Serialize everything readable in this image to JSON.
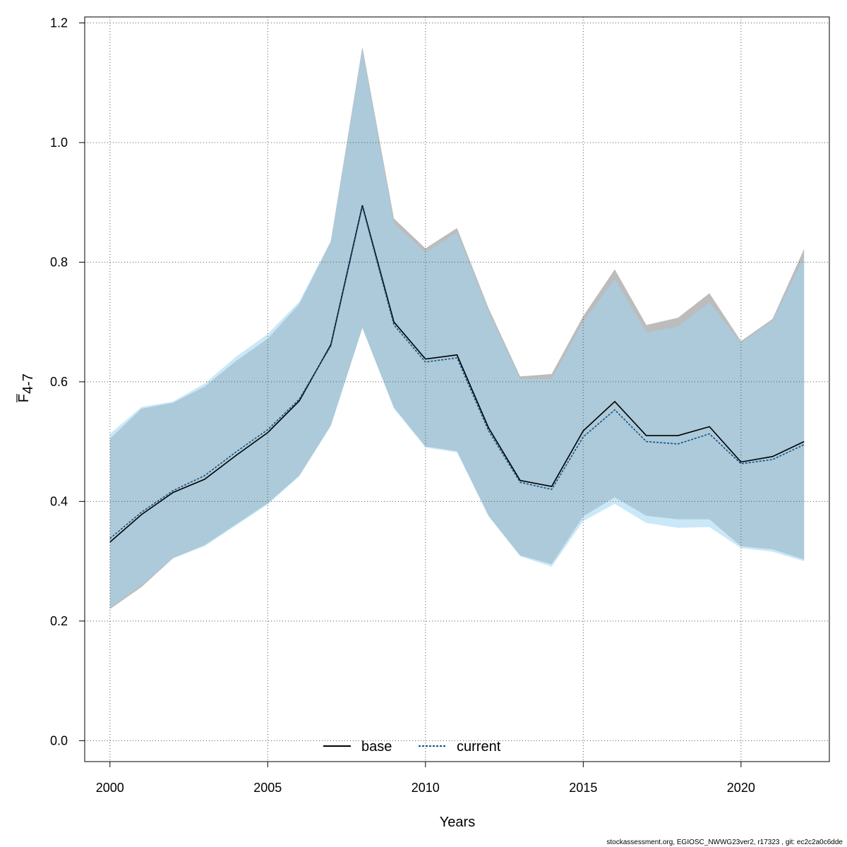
{
  "chart_data": {
    "type": "line",
    "title": "",
    "xlabel": "Years",
    "ylabel_main": "F",
    "ylabel_sub": "4-7",
    "xlim": [
      1999.2,
      2022.8
    ],
    "ylim": [
      -0.035,
      1.21
    ],
    "x_ticks": [
      2000,
      2005,
      2010,
      2015,
      2020
    ],
    "y_ticks": [
      0.0,
      0.2,
      0.4,
      0.6,
      0.8,
      1.0,
      1.2
    ],
    "y_tick_labels": [
      "0.0",
      "0.2",
      "0.4",
      "0.6",
      "0.8",
      "1.0",
      "1.2"
    ],
    "grid": true,
    "legend_position": "bottom-center",
    "x": [
      2000,
      2001,
      2002,
      2003,
      2004,
      2005,
      2006,
      2007,
      2008,
      2009,
      2010,
      2011,
      2012,
      2013,
      2014,
      2015,
      2016,
      2017,
      2018,
      2019,
      2020,
      2021,
      2022
    ],
    "series": [
      {
        "name": "base",
        "style": "solid",
        "color": "#000000",
        "band_color": "#a6a6a6",
        "values": [
          0.332,
          0.378,
          0.415,
          0.437,
          0.477,
          0.515,
          0.568,
          0.662,
          0.895,
          0.7,
          0.638,
          0.645,
          0.523,
          0.435,
          0.425,
          0.518,
          0.567,
          0.51,
          0.51,
          0.525,
          0.466,
          0.475,
          0.5
        ],
        "lower": [
          0.22,
          0.257,
          0.305,
          0.327,
          0.362,
          0.397,
          0.443,
          0.527,
          0.69,
          0.557,
          0.492,
          0.484,
          0.376,
          0.31,
          0.295,
          0.375,
          0.407,
          0.376,
          0.37,
          0.37,
          0.325,
          0.32,
          0.303
        ],
        "upper": [
          0.505,
          0.555,
          0.565,
          0.592,
          0.635,
          0.672,
          0.73,
          0.835,
          1.16,
          0.873,
          0.823,
          0.857,
          0.723,
          0.609,
          0.613,
          0.71,
          0.788,
          0.695,
          0.707,
          0.748,
          0.668,
          0.705,
          0.822
        ]
      },
      {
        "name": "current",
        "style": "dashed",
        "color": "#1a4f80",
        "band_color": "#9fd6f0",
        "values": [
          0.338,
          0.382,
          0.418,
          0.443,
          0.483,
          0.52,
          0.571,
          0.66,
          0.893,
          0.695,
          0.633,
          0.64,
          0.518,
          0.432,
          0.42,
          0.508,
          0.553,
          0.5,
          0.496,
          0.513,
          0.463,
          0.47,
          0.495
        ],
        "lower": [
          0.222,
          0.26,
          0.305,
          0.325,
          0.36,
          0.395,
          0.442,
          0.526,
          0.69,
          0.555,
          0.49,
          0.482,
          0.375,
          0.308,
          0.291,
          0.367,
          0.396,
          0.364,
          0.356,
          0.357,
          0.322,
          0.316,
          0.3
        ],
        "upper": [
          0.513,
          0.558,
          0.567,
          0.597,
          0.642,
          0.68,
          0.734,
          0.835,
          1.155,
          0.865,
          0.816,
          0.85,
          0.718,
          0.605,
          0.605,
          0.7,
          0.772,
          0.683,
          0.692,
          0.733,
          0.665,
          0.702,
          0.808
        ]
      }
    ]
  },
  "legend": {
    "base_label": "base",
    "current_label": "current"
  },
  "footer": {
    "text": "stockassessment.org, EGIOSC_NWWG23ver2, r17323 , git: ec2c2a0c6dde"
  },
  "colors": {
    "base_band": "#a6a6a6",
    "current_band": "#9fd6f0",
    "base_line": "#000000",
    "current_line": "#1a4f80"
  }
}
